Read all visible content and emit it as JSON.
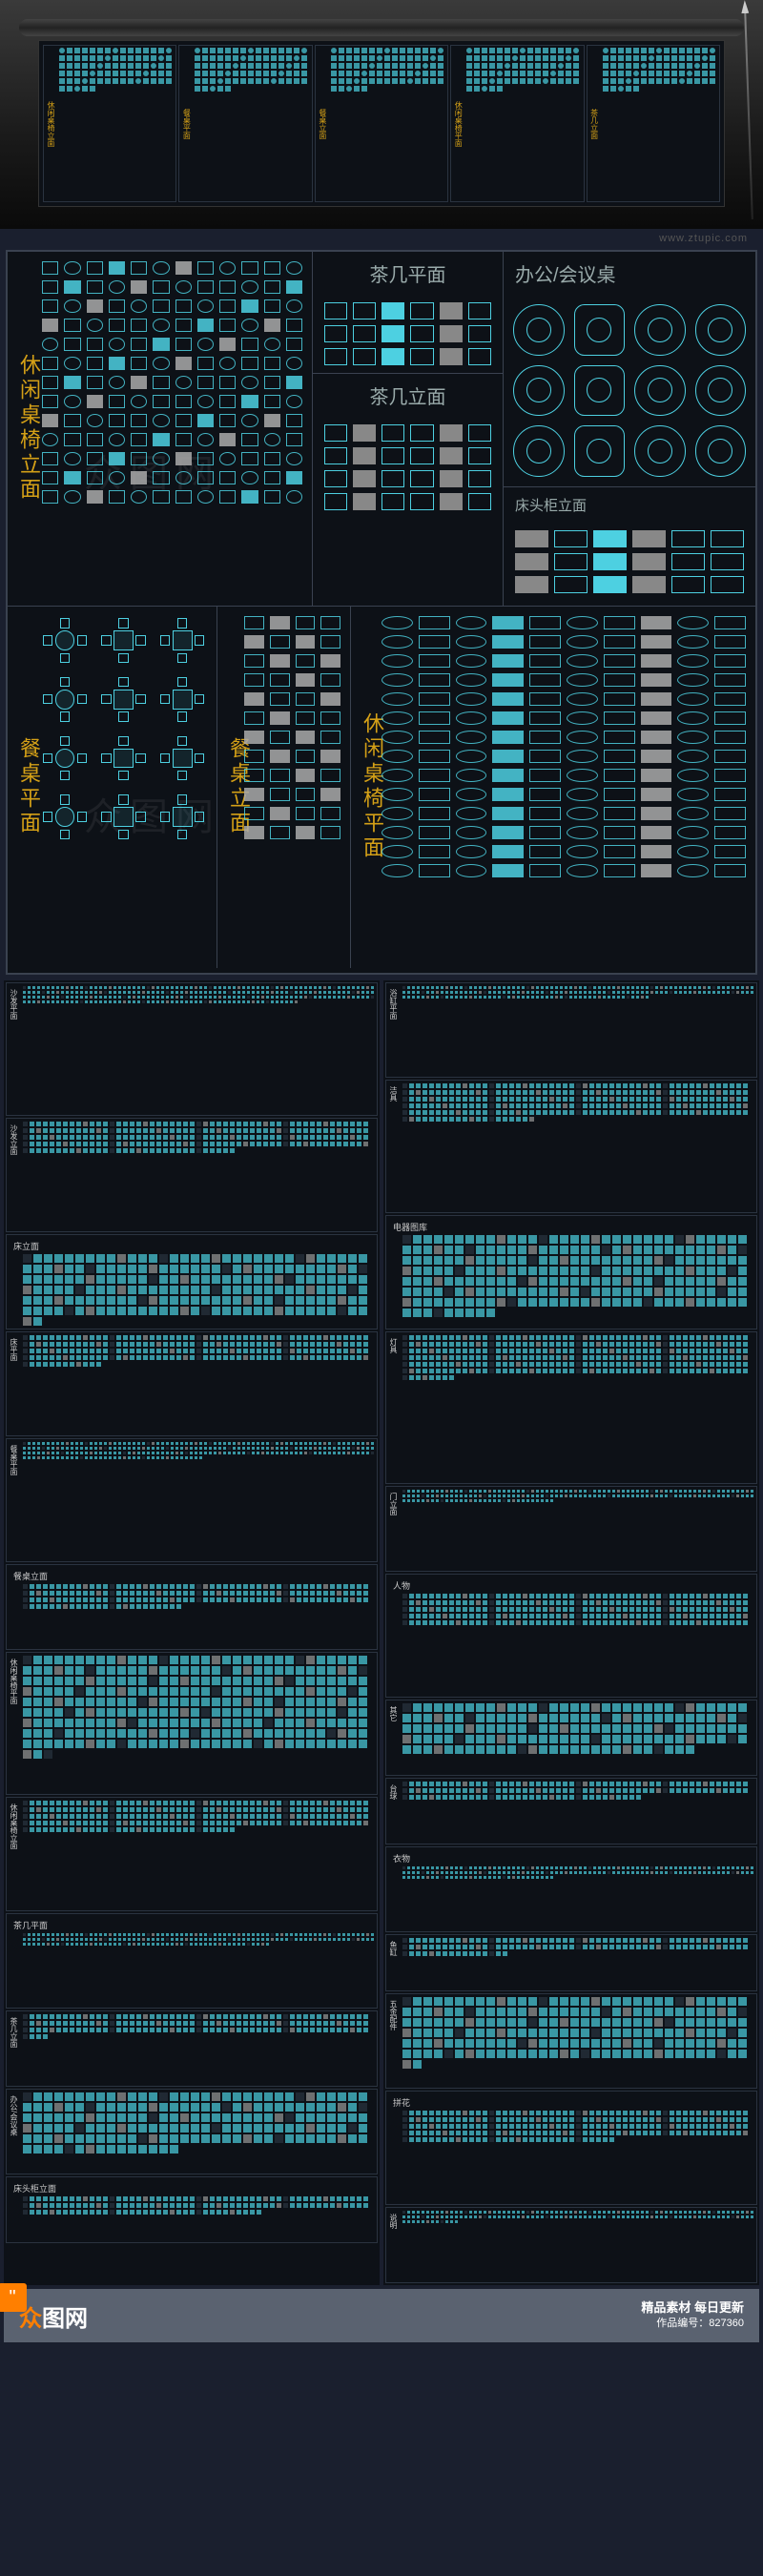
{
  "url_watermark": "www.ztupic.com",
  "brand_watermark": "众图网",
  "colors": {
    "background": "#0d1117",
    "page_bg": "#1a1f2e",
    "border": "#3a4250",
    "cad_line": "#4dd0e1",
    "label_yellow": "#d4a017",
    "label_gray": "#99aaaa",
    "neutral": "#888888",
    "footer_bg": "#5a6270",
    "accent_orange": "#ff7f00"
  },
  "scroll_preview": {
    "columns": [
      "休闲桌椅立面",
      "餐桌平面",
      "餐桌立面",
      "休闲桌椅平面",
      "茶几立面"
    ]
  },
  "main_sections": {
    "left_label": "休闲桌椅立面",
    "mid_top_title": "茶几平面",
    "mid_mid_title": "茶几立面",
    "right_top_title": "办公/会议桌",
    "right_bottom_title": "床头柜立面",
    "lower_a_label": "餐桌平面",
    "lower_b_label": "餐桌立面",
    "lower_c_label": "休闲桌椅平面"
  },
  "thumb_left_labels": [
    "沙发平面",
    "沙发立面",
    "床立面",
    "床平面",
    "餐桌平面",
    "餐桌立面",
    "休闲桌椅平面",
    "休闲桌椅立面",
    "茶几平面",
    "茶几立面",
    "办公/会议桌",
    "床头柜立面"
  ],
  "thumb_right_labels": [
    "浴缸平面",
    "洁具",
    "电器图库",
    "灯具",
    "门立面",
    "人物",
    "其它",
    "台球",
    "衣物",
    "鱼缸",
    "五金配件",
    "拼花",
    "说明"
  ],
  "footer": {
    "logo_prefix": "众",
    "logo_rest": "图网",
    "slogan": "精品素材  每日更新",
    "product_id_label": "作品编号：",
    "product_id": "827360"
  }
}
